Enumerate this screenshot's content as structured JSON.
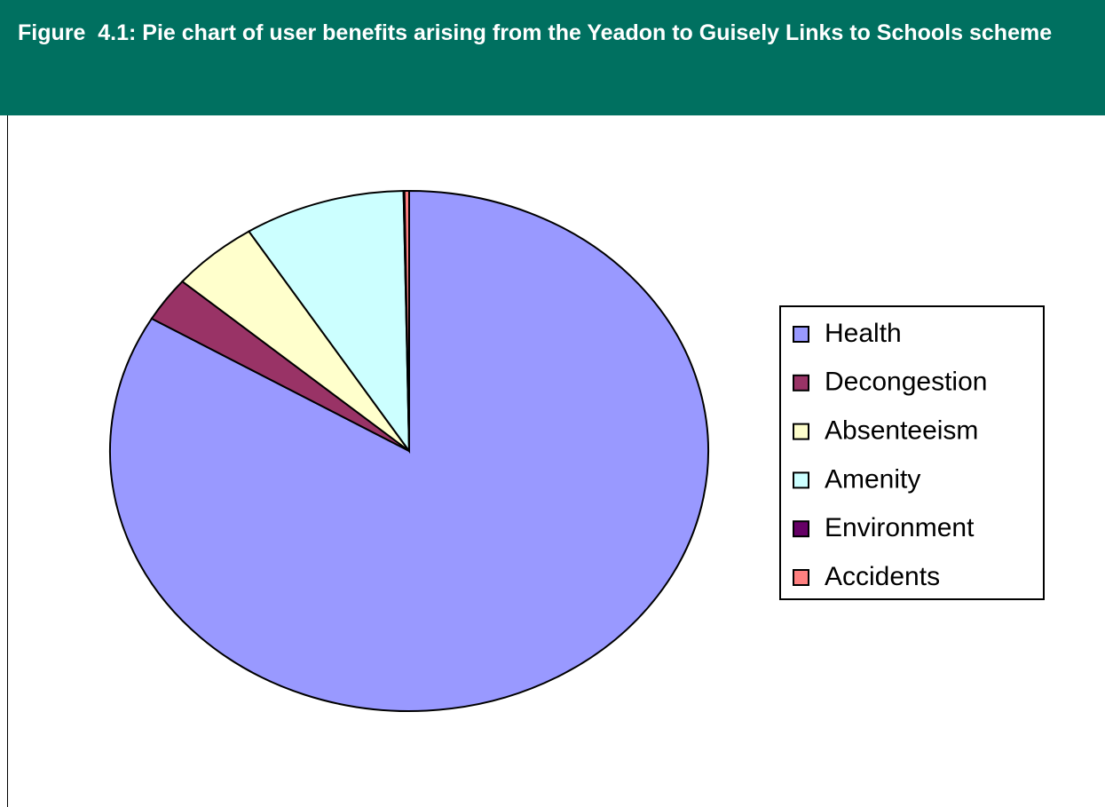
{
  "chart_data": {
    "type": "pie",
    "title": "Figure  4.1: Pie chart of user benefits arising from the Yeadon to Guisely Links to Schools scheme",
    "categories": [
      "Health",
      "Decongestion",
      "Absenteeism",
      "Amenity",
      "Environment",
      "Accidents"
    ],
    "values": [
      83.5,
      2.8,
      4.7,
      8.7,
      0.05,
      0.25
    ],
    "colors": [
      "#9999ff",
      "#993366",
      "#ffffcc",
      "#ccffff",
      "#660066",
      "#ff8080"
    ],
    "legend": "right"
  }
}
